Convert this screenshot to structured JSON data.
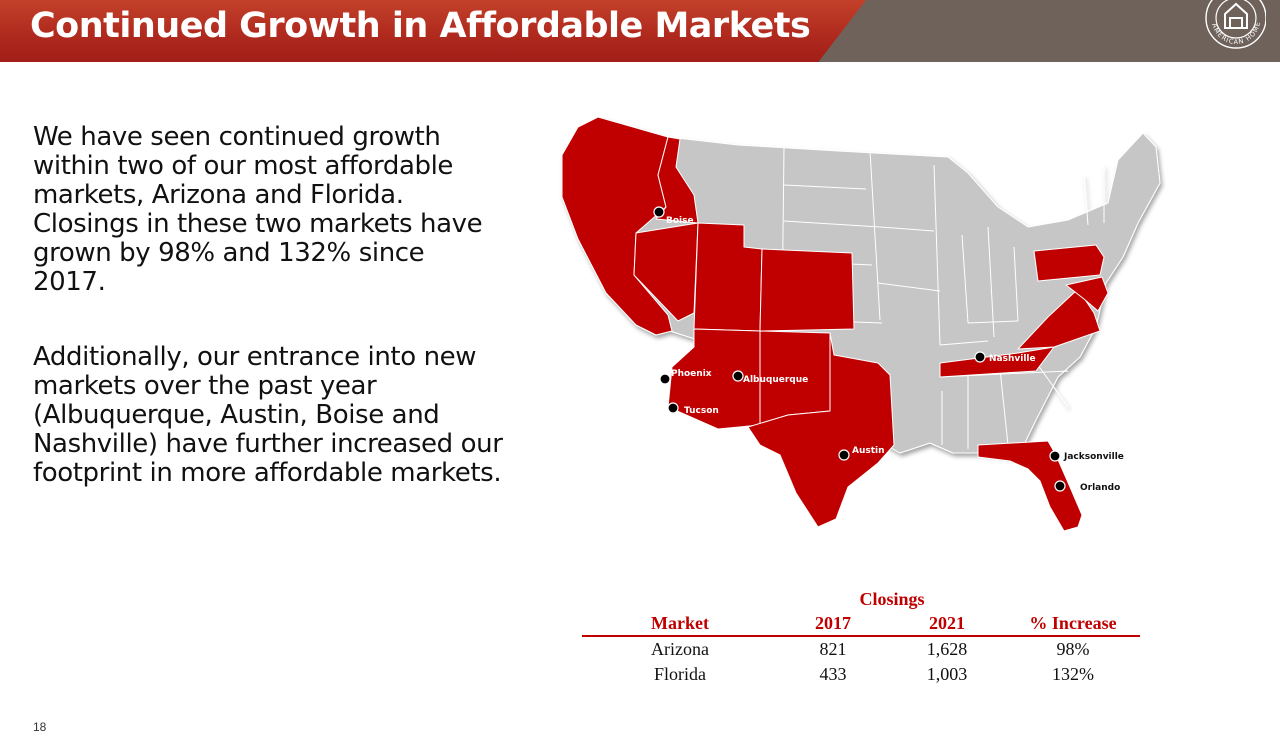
{
  "slide": {
    "title": "Continued Growth in Affordable Markets",
    "page_number": "18",
    "colors": {
      "accent_red": "#b02a1e",
      "active_state": "#c00000",
      "inactive_state": "#c6c6c6",
      "header_gray": "#6e625a"
    }
  },
  "logo": {
    "name": "company-seal-logo",
    "text": "AMERICAN HOMES"
  },
  "body": {
    "paragraph_1": "We have seen continued growth within two of our most affordable markets, Arizona and Florida. Closings in these two markets have grown by 98% and 132% since 2017.",
    "paragraph_2": "Additionally, our entrance into new markets over the past year (Albuquerque, Austin, Boise and Nashville) have further increased our footprint in more affordable markets."
  },
  "map": {
    "highlighted_states": [
      "Washington",
      "Oregon",
      "California",
      "Idaho",
      "Nevada",
      "Utah",
      "Arizona",
      "Colorado",
      "New Mexico",
      "Texas",
      "Tennessee",
      "Florida",
      "Virginia",
      "Maryland",
      "Pennsylvania",
      "Delaware"
    ],
    "cities": [
      "Boise",
      "Phoenix",
      "Albuquerque",
      "Tucson",
      "Austin",
      "Nashville",
      "Jacksonville",
      "Orlando"
    ]
  },
  "closings": {
    "heading": "Closings",
    "columns": [
      "Market",
      "2017",
      "2021",
      "% Increase"
    ],
    "rows": [
      {
        "market": "Arizona",
        "y2017": "821",
        "y2021": "1,628",
        "increase": "98%"
      },
      {
        "market": "Florida",
        "y2017": "433",
        "y2021": "1,003",
        "increase": "132%"
      }
    ]
  }
}
